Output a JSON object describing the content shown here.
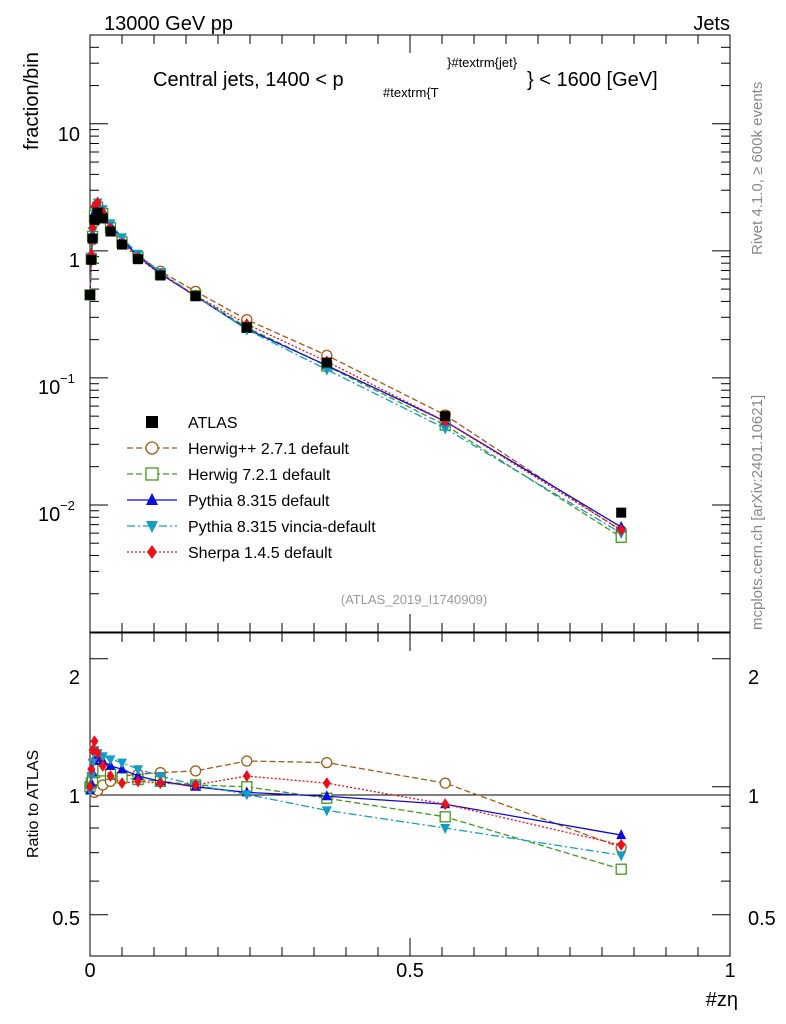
{
  "header": {
    "left": "13000 GeV pp",
    "right": "Jets",
    "side_top": "Rivet 4.1.0, ≥ 600k events",
    "side_bottom": "mcplots.cern.ch [arXiv:2401.10621]",
    "analysis_id": "(ATLAS_2019_I1740909)"
  },
  "chart_data": {
    "type": "line",
    "title_main": "Central jets, 1400 < p",
    "title_sub": "#textrm{T",
    "title_sup": "}#textrm{jet}",
    "title_end": "} < 1600 [GeV]",
    "ylabel": "fraction/bin",
    "ratio_ylabel": "Ratio to ATLAS",
    "xlabel": "#zη",
    "xlim": [
      0,
      1
    ],
    "ylim": [
      0.001,
      50
    ],
    "ratio_ylim": [
      0.4,
      2.3
    ],
    "x_ticks": [
      "0",
      "0.5",
      "1"
    ],
    "y_ticks": [
      "10",
      "1"
    ],
    "y_tick_base": "10",
    "y_tick_exp": [
      "−1",
      "−2"
    ],
    "ratio_ticks": [
      "2",
      "1",
      "0.5"
    ],
    "x": [
      0.0,
      0.002,
      0.004,
      0.007,
      0.012,
      0.02,
      0.032,
      0.05,
      0.075,
      0.11,
      0.165,
      0.245,
      0.37,
      0.555,
      0.83
    ],
    "reference": {
      "name": "ATLAS",
      "color": "#000000",
      "values": [
        0.45,
        0.85,
        1.25,
        1.75,
        2.0,
        1.8,
        1.42,
        1.12,
        0.86,
        0.64,
        0.44,
        0.25,
        0.132,
        0.05,
        0.0087
      ]
    },
    "series": [
      {
        "name": "Herwig++ 2.7.1 default",
        "color": "#a05a17",
        "marker": "circle-open",
        "dash": "6,3",
        "ratio": [
          1.0,
          1.0,
          0.98,
          0.97,
          0.98,
          1.01,
          1.03,
          1.06,
          1.07,
          1.08,
          1.09,
          1.15,
          1.14,
          1.02,
          0.72
        ]
      },
      {
        "name": "Herwig 7.2.1 default",
        "color": "#3e9a1c",
        "marker": "square-open",
        "dash": "6,3",
        "ratio": [
          1.0,
          1.02,
          1.04,
          1.08,
          1.1,
          1.09,
          1.07,
          1.05,
          1.04,
          1.03,
          1.01,
          1.0,
          0.94,
          0.85,
          0.64
        ]
      },
      {
        "name": "Pythia 8.315 default",
        "color": "#0a0ad8",
        "marker": "triangle-up",
        "dash": "",
        "ratio": [
          0.98,
          1.02,
          1.08,
          1.15,
          1.17,
          1.15,
          1.12,
          1.1,
          1.06,
          1.03,
          1.0,
          0.97,
          0.95,
          0.91,
          0.77
        ]
      },
      {
        "name": "Pythia 8.315 vincia-default",
        "color": "#149cc2",
        "marker": "triangle-down",
        "dash": "8,3,2,3",
        "ratio": [
          0.98,
          1.06,
          1.14,
          1.22,
          1.2,
          1.18,
          1.16,
          1.14,
          1.1,
          1.06,
          1.01,
          0.96,
          0.88,
          0.8,
          0.69
        ]
      },
      {
        "name": "Sherpa 1.4.5 default",
        "color": "#e8101a",
        "marker": "diamond",
        "dash": "2,2",
        "ratio": [
          1.0,
          1.1,
          1.22,
          1.28,
          1.2,
          1.12,
          1.06,
          1.02,
          1.03,
          1.02,
          1.01,
          1.06,
          1.02,
          0.91,
          0.73
        ]
      }
    ]
  }
}
